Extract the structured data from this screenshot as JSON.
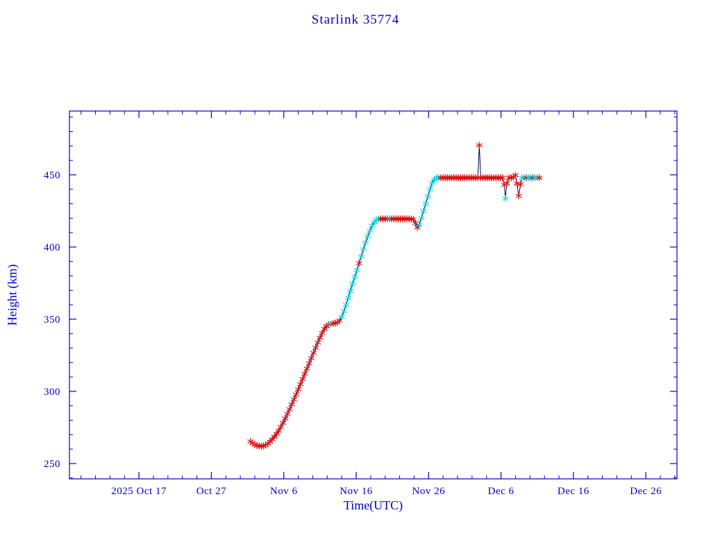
{
  "chart_data": {
    "type": "line",
    "title": "Starlink 35774",
    "xlabel": "Time(UTC)",
    "ylabel": "Height (km)",
    "x_unit": "days since 2025 Oct 17",
    "xlim": [
      -9.6,
      74.3
    ],
    "ylim": [
      239.4,
      494.2
    ],
    "x_ticks": [
      {
        "day": 0,
        "label": "2025 Oct 17"
      },
      {
        "day": 10,
        "label": "Oct 27"
      },
      {
        "day": 20,
        "label": "Nov 6"
      },
      {
        "day": 30,
        "label": "Nov 16"
      },
      {
        "day": 40,
        "label": "Nov 26"
      },
      {
        "day": 50,
        "label": "Dec 6"
      },
      {
        "day": 60,
        "label": "Dec 16"
      },
      {
        "day": 70,
        "label": "Dec 26"
      }
    ],
    "y_ticks": [
      250,
      300,
      350,
      400,
      450
    ],
    "x_minor_step": 2,
    "y_minor_step": 10,
    "grid": false,
    "legend": "none",
    "axis_color": "#0000c4",
    "line_color": "#000060",
    "marker_colors": {
      "r": "#dd0f0f",
      "c": "#00dbe6"
    },
    "points": [
      [
        15.4,
        265.3,
        "r"
      ],
      [
        15.7,
        264.2,
        "r"
      ],
      [
        16.0,
        263.2,
        "r"
      ],
      [
        16.3,
        262.5,
        "r"
      ],
      [
        16.6,
        262.1,
        "r"
      ],
      [
        16.9,
        262.0,
        "r"
      ],
      [
        17.2,
        262.2,
        "r"
      ],
      [
        17.5,
        262.8,
        "r"
      ],
      [
        17.8,
        263.8,
        "r"
      ],
      [
        18.1,
        265.2,
        "r"
      ],
      [
        18.4,
        266.8,
        "r"
      ],
      [
        18.7,
        268.6,
        "r"
      ],
      [
        19.0,
        270.6,
        "r"
      ],
      [
        19.3,
        272.8,
        "r"
      ],
      [
        19.6,
        275.4,
        "r"
      ],
      [
        19.9,
        278.2,
        "r"
      ],
      [
        20.2,
        281.2,
        "r"
      ],
      [
        20.5,
        284.4,
        "r"
      ],
      [
        20.8,
        287.6,
        "r"
      ],
      [
        21.1,
        291.0,
        "r"
      ],
      [
        21.4,
        294.4,
        "r"
      ],
      [
        21.7,
        297.8,
        "r"
      ],
      [
        22.0,
        301.4,
        "r"
      ],
      [
        22.3,
        305.0,
        "r"
      ],
      [
        22.6,
        308.6,
        "r"
      ],
      [
        22.9,
        312.2,
        "r"
      ],
      [
        23.2,
        315.8,
        "r"
      ],
      [
        23.5,
        319.4,
        "r"
      ],
      [
        23.8,
        323.0,
        "r"
      ],
      [
        24.1,
        326.6,
        "r"
      ],
      [
        24.4,
        330.2,
        "r"
      ],
      [
        24.7,
        333.8,
        "r"
      ],
      [
        25.0,
        337.2,
        "r"
      ],
      [
        25.3,
        340.4,
        "r"
      ],
      [
        25.6,
        343.2,
        "r"
      ],
      [
        25.9,
        345.2,
        "r"
      ],
      [
        26.2,
        346.2,
        "r"
      ],
      [
        26.5,
        346.6,
        "c"
      ],
      [
        26.8,
        347.0,
        "r"
      ],
      [
        27.1,
        347.4,
        "r"
      ],
      [
        27.4,
        347.8,
        "r"
      ],
      [
        27.7,
        349.0,
        "r"
      ],
      [
        28.0,
        351.5,
        "c"
      ],
      [
        28.3,
        355.5,
        "c"
      ],
      [
        28.6,
        360.0,
        "c"
      ],
      [
        28.9,
        364.8,
        "c"
      ],
      [
        29.2,
        369.6,
        "c"
      ],
      [
        29.5,
        374.4,
        "c"
      ],
      [
        29.8,
        379.2,
        "c"
      ],
      [
        30.1,
        384.0,
        "c"
      ],
      [
        30.4,
        388.8,
        "r"
      ],
      [
        30.7,
        393.6,
        "c"
      ],
      [
        31.0,
        398.4,
        "c"
      ],
      [
        31.3,
        403.0,
        "c"
      ],
      [
        31.6,
        407.4,
        "c"
      ],
      [
        31.9,
        411.4,
        "c"
      ],
      [
        32.2,
        414.8,
        "c"
      ],
      [
        32.5,
        417.2,
        "c"
      ],
      [
        32.8,
        418.8,
        "c"
      ],
      [
        33.1,
        419.4,
        "c"
      ],
      [
        33.4,
        419.5,
        "r"
      ],
      [
        33.7,
        419.5,
        "r"
      ],
      [
        34.0,
        419.5,
        "r"
      ],
      [
        34.3,
        419.5,
        "r"
      ],
      [
        34.6,
        419.5,
        "c"
      ],
      [
        34.9,
        419.5,
        "r"
      ],
      [
        35.2,
        419.5,
        "r"
      ],
      [
        35.5,
        419.5,
        "r"
      ],
      [
        35.8,
        419.5,
        "r"
      ],
      [
        36.1,
        419.5,
        "r"
      ],
      [
        36.4,
        419.5,
        "r"
      ],
      [
        36.7,
        419.5,
        "r"
      ],
      [
        37.0,
        419.5,
        "r"
      ],
      [
        37.3,
        419.5,
        "r"
      ],
      [
        37.6,
        419.4,
        "r"
      ],
      [
        37.9,
        419.2,
        "r"
      ],
      [
        38.2,
        416.5,
        "r"
      ],
      [
        38.45,
        413.5,
        "r"
      ],
      [
        38.7,
        415.5,
        "c"
      ],
      [
        39.0,
        420.0,
        "c"
      ],
      [
        39.3,
        425.0,
        "c"
      ],
      [
        39.6,
        430.0,
        "c"
      ],
      [
        39.9,
        435.0,
        "c"
      ],
      [
        40.2,
        440.0,
        "c"
      ],
      [
        40.5,
        444.5,
        "c"
      ],
      [
        40.8,
        447.0,
        "c"
      ],
      [
        41.1,
        448.0,
        "c"
      ],
      [
        41.4,
        448.0,
        "c"
      ],
      [
        41.7,
        448.0,
        "r"
      ],
      [
        42.0,
        448.0,
        "r"
      ],
      [
        42.3,
        448.0,
        "r"
      ],
      [
        42.6,
        448.0,
        "r"
      ],
      [
        42.9,
        448.0,
        "r"
      ],
      [
        43.2,
        448.0,
        "r"
      ],
      [
        43.5,
        448.0,
        "r"
      ],
      [
        43.8,
        448.0,
        "r"
      ],
      [
        44.1,
        448.0,
        "r"
      ],
      [
        44.4,
        448.0,
        "r"
      ],
      [
        44.7,
        448.0,
        "r"
      ],
      [
        45.0,
        448.0,
        "r"
      ],
      [
        45.3,
        448.0,
        "r"
      ],
      [
        45.6,
        448.0,
        "r"
      ],
      [
        45.9,
        448.0,
        "r"
      ],
      [
        46.2,
        448.0,
        "r"
      ],
      [
        46.5,
        448.0,
        "r"
      ],
      [
        46.8,
        448.0,
        "r"
      ],
      [
        47.0,
        470.5,
        "r"
      ],
      [
        47.2,
        448.0,
        "r"
      ],
      [
        47.5,
        448.0,
        "r"
      ],
      [
        47.8,
        448.0,
        "r"
      ],
      [
        48.1,
        448.0,
        "r"
      ],
      [
        48.4,
        448.0,
        "r"
      ],
      [
        48.7,
        448.0,
        "r"
      ],
      [
        49.0,
        448.0,
        "r"
      ],
      [
        49.3,
        448.0,
        "r"
      ],
      [
        49.6,
        448.0,
        "r"
      ],
      [
        49.9,
        448.0,
        "r"
      ],
      [
        50.2,
        448.0,
        "r"
      ],
      [
        50.45,
        443.0,
        "r"
      ],
      [
        50.6,
        433.5,
        "c"
      ],
      [
        50.8,
        444.0,
        "r"
      ],
      [
        51.1,
        448.0,
        "r"
      ],
      [
        51.4,
        448.0,
        "r"
      ],
      [
        51.7,
        448.5,
        "r"
      ],
      [
        52.0,
        449.8,
        "r"
      ],
      [
        52.2,
        444.0,
        "r"
      ],
      [
        52.45,
        435.5,
        "r"
      ],
      [
        52.7,
        443.5,
        "r"
      ],
      [
        52.9,
        448.0,
        "c"
      ],
      [
        53.2,
        448.0,
        "c"
      ],
      [
        53.5,
        448.0,
        "r"
      ],
      [
        53.8,
        448.0,
        "c"
      ],
      [
        54.1,
        448.0,
        "c"
      ],
      [
        54.4,
        448.0,
        "r"
      ],
      [
        54.7,
        448.0,
        "c"
      ],
      [
        55.0,
        448.0,
        "c"
      ],
      [
        55.3,
        448.0,
        "r"
      ]
    ]
  }
}
